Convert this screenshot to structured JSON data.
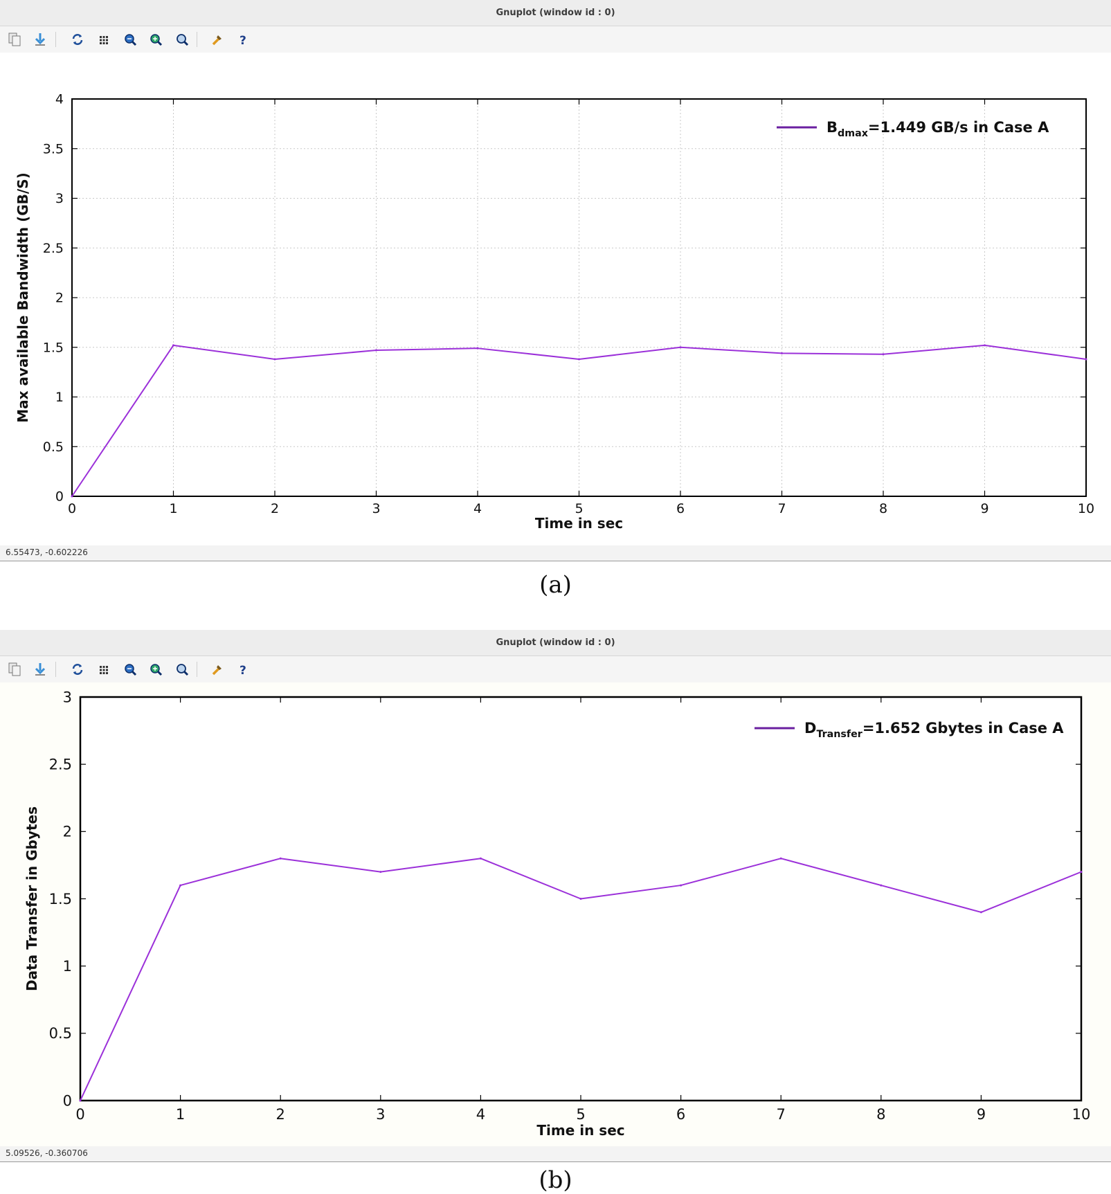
{
  "colors": {
    "series": "#9b30d9",
    "legend_line": "#6a1fa0",
    "grid": "#c8c8c8",
    "frame": "#000000"
  },
  "panels": [
    {
      "window_title": "Gnuplot (window id : 0)",
      "toolbar": [
        "copy-icon",
        "export-icon",
        "replot-icon",
        "grid-icon",
        "zoom-previous-icon",
        "zoom-next-icon",
        "autoscale-icon",
        "options-icon",
        "help-icon"
      ],
      "status_text": "6.55473, -0.602226",
      "caption": "(a)",
      "legend": {
        "main": "B",
        "sub": "dmax",
        "rest": "=1.449 GB/s in Case A"
      },
      "chart_data": {
        "type": "line",
        "xlabel": "Time in sec",
        "ylabel": "Max available Bandwidth (GB/S)",
        "xlim": [
          0,
          10
        ],
        "ylim": [
          0,
          4
        ],
        "grid": true,
        "legend_position": "top-right",
        "x_ticks": [
          "0",
          "1",
          "2",
          "3",
          "4",
          "5",
          "6",
          "7",
          "8",
          "9",
          "10"
        ],
        "y_ticks": [
          "0",
          "0.5",
          "1",
          "1.5",
          "2",
          "2.5",
          "3",
          "3.5",
          "4"
        ],
        "series": [
          {
            "name": "Bdmax=1.449 GB/s in Case A",
            "x": [
              0,
              1,
              2,
              3,
              4,
              5,
              6,
              7,
              8,
              9,
              10
            ],
            "y": [
              0,
              1.52,
              1.38,
              1.47,
              1.49,
              1.38,
              1.5,
              1.44,
              1.43,
              1.52,
              1.38
            ]
          }
        ]
      }
    },
    {
      "window_title": "Gnuplot (window id : 0)",
      "toolbar": [
        "copy-icon",
        "export-icon",
        "replot-icon",
        "grid-icon",
        "zoom-previous-icon",
        "zoom-next-icon",
        "autoscale-icon",
        "options-icon",
        "help-icon"
      ],
      "status_text": "5.09526, -0.360706",
      "caption": "(b)",
      "legend": {
        "main": "D",
        "sub": "Transfer",
        "rest": "=1.652 Gbytes in Case A"
      },
      "chart_data": {
        "type": "line",
        "xlabel": "Time in sec",
        "ylabel": "Data Transfer in Gbytes",
        "xlim": [
          0,
          10
        ],
        "ylim": [
          0,
          3
        ],
        "grid": false,
        "legend_position": "top-right",
        "x_ticks": [
          "0",
          "1",
          "2",
          "3",
          "4",
          "5",
          "6",
          "7",
          "8",
          "9",
          "10"
        ],
        "y_ticks": [
          "0",
          "0.5",
          "1",
          "1.5",
          "2",
          "2.5",
          "3"
        ],
        "series": [
          {
            "name": "DTransfer=1.652 Gbytes in Case A",
            "x": [
              0,
              1,
              2,
              3,
              4,
              5,
              6,
              7,
              8,
              9,
              10
            ],
            "y": [
              0,
              1.6,
              1.8,
              1.7,
              1.8,
              1.5,
              1.6,
              1.8,
              1.6,
              1.4,
              1.7
            ]
          }
        ]
      }
    }
  ]
}
